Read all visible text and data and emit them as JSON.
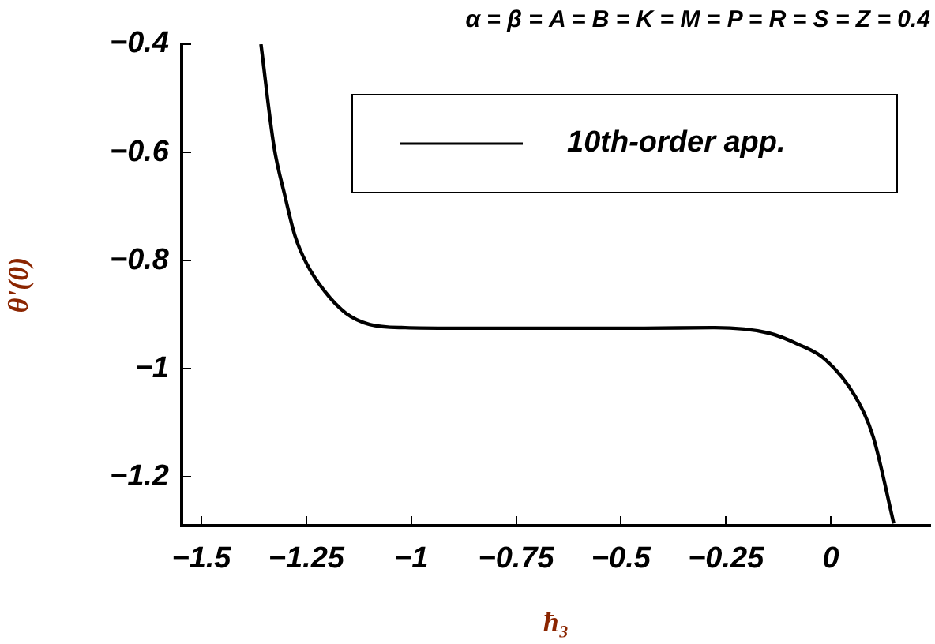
{
  "chart_data": {
    "type": "line",
    "title": "α = β = A = B = K = M = P = R = S = Z = 0.4",
    "xlabel": "ħ₃",
    "ylabel": "θ'(0)",
    "series": [
      {
        "name": "10th-order app.",
        "color": "#000000",
        "x": [
          -1.358,
          -1.327,
          -1.301,
          -1.277,
          -1.249,
          -1.206,
          -1.156,
          -1.099,
          -1.014,
          -0.9,
          -0.75,
          -0.6,
          -0.45,
          -0.276,
          -0.148,
          -0.077,
          -0.013,
          0.058,
          0.101,
          0.15
        ],
        "values": [
          -0.4,
          -0.589,
          -0.68,
          -0.754,
          -0.806,
          -0.857,
          -0.897,
          -0.918,
          -0.924,
          -0.925,
          -0.925,
          -0.925,
          -0.925,
          -0.924,
          -0.934,
          -0.955,
          -0.983,
          -1.051,
          -1.126,
          -1.286
        ]
      }
    ],
    "xlim": [
      -1.547,
      0.237
    ],
    "ylim": [
      -1.29,
      -0.4
    ],
    "xticks": [
      {
        "value": -1.5,
        "label": "−1.5"
      },
      {
        "value": -1.25,
        "label": "−1.25"
      },
      {
        "value": -1,
        "label": "−1"
      },
      {
        "value": -0.75,
        "label": "−0.75"
      },
      {
        "value": -0.5,
        "label": "−0.5"
      },
      {
        "value": -0.25,
        "label": "−0.25"
      },
      0
    ],
    "yticks": [
      {
        "value": -1.2,
        "label": "−1.2"
      },
      {
        "value": -1,
        "label": "−1"
      },
      {
        "value": -0.8,
        "label": "−0.8"
      },
      {
        "value": -0.6,
        "label": "−0.6"
      },
      {
        "value": -0.4,
        "label": "−0.4"
      }
    ],
    "grid": false,
    "legend": "top right",
    "marker": "none",
    "line_style": "solid"
  }
}
